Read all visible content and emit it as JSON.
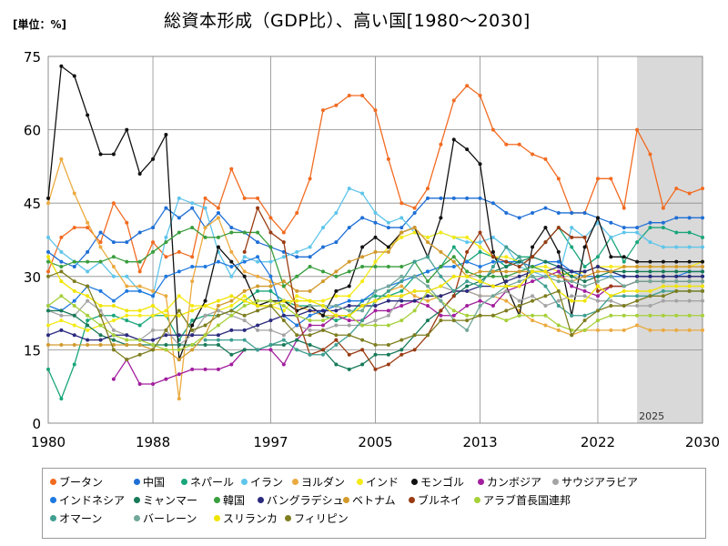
{
  "chart_data": {
    "type": "line",
    "title": "総資本形成（GDP比）、高い国[1980～2030]",
    "unit_label": "[単位：%]",
    "xlabel": "",
    "ylabel": "",
    "x_ticks": [
      1980,
      1988,
      1997,
      2005,
      2013,
      2022,
      2030
    ],
    "y_ticks": [
      0,
      15,
      30,
      45,
      60,
      75
    ],
    "xlim": [
      1980,
      2030
    ],
    "ylim": [
      0,
      75
    ],
    "forecast_start": 2025,
    "forecast_label": "2025",
    "grid": true,
    "legend_position": "bottom",
    "x": [
      1980,
      1981,
      1982,
      1983,
      1984,
      1985,
      1986,
      1987,
      1988,
      1989,
      1990,
      1991,
      1992,
      1993,
      1994,
      1995,
      1996,
      1997,
      1998,
      1999,
      2000,
      2001,
      2002,
      2003,
      2004,
      2005,
      2006,
      2007,
      2008,
      2009,
      2010,
      2011,
      2012,
      2013,
      2014,
      2015,
      2016,
      2017,
      2018,
      2019,
      2020,
      2021,
      2022,
      2023,
      2024,
      2025,
      2026,
      2027,
      2028,
      2029,
      2030
    ],
    "series": [
      {
        "name": "ブータン",
        "color": "#f26b21",
        "values": [
          31,
          38,
          40,
          40,
          37,
          45,
          41,
          31,
          37,
          34,
          35,
          34,
          46,
          44,
          52,
          46,
          46,
          42,
          39,
          43,
          50,
          64,
          65,
          67,
          67,
          64,
          54,
          45,
          44,
          48,
          57,
          66,
          69,
          67,
          60,
          57,
          57,
          55,
          54,
          50,
          43,
          43,
          50,
          50,
          44,
          60,
          55,
          44,
          48,
          47,
          48
        ]
      },
      {
        "name": "中国",
        "color": "#1f6fd6",
        "values": [
          35,
          33,
          32,
          35,
          39,
          37,
          37,
          39,
          40,
          44,
          42,
          44,
          40,
          43,
          40,
          39,
          37,
          36,
          35,
          34,
          34,
          36,
          37,
          40,
          42,
          41,
          40,
          40,
          43,
          46,
          46,
          46,
          46,
          46,
          45,
          43,
          42,
          43,
          44,
          43,
          43,
          43,
          42,
          41,
          40,
          40,
          41,
          41,
          42,
          42,
          42
        ]
      },
      {
        "name": "ネパール",
        "color": "#1aa67b",
        "values": [
          11,
          5,
          12,
          21,
          22,
          22,
          21,
          20,
          22,
          22,
          17,
          21,
          22,
          22,
          23,
          25,
          27,
          27,
          25,
          24,
          24,
          22,
          21,
          22,
          25,
          26,
          26,
          27,
          30,
          31,
          32,
          36,
          33,
          35,
          34,
          32,
          34,
          34,
          37,
          40,
          36,
          32,
          34,
          38,
          33,
          37,
          40,
          40,
          39,
          39,
          38
        ]
      },
      {
        "name": "イラン",
        "color": "#5fc5ea",
        "values": [
          38,
          35,
          33,
          31,
          33,
          30,
          30,
          27,
          26,
          38,
          46,
          45,
          44,
          35,
          30,
          34,
          33,
          33,
          34,
          35,
          36,
          40,
          43,
          48,
          47,
          43,
          41,
          42,
          39,
          38,
          39,
          38,
          37,
          37,
          38,
          36,
          32,
          31,
          30,
          30,
          40,
          38,
          41,
          38,
          39,
          39,
          37,
          36,
          36,
          36,
          36
        ]
      },
      {
        "name": "ヨルダン",
        "color": "#ebaa3f",
        "values": [
          45,
          54,
          47,
          41,
          36,
          32,
          28,
          28,
          27,
          26,
          5,
          29,
          40,
          42,
          35,
          31,
          30,
          29,
          28,
          24,
          23,
          22,
          22,
          22,
          24,
          25,
          27,
          28,
          26,
          25,
          26,
          27,
          27,
          26,
          26,
          25,
          23,
          21,
          20,
          19,
          18,
          19,
          19,
          19,
          19,
          20,
          19,
          19,
          19,
          19,
          19
        ]
      },
      {
        "name": "インド",
        "color": "#f5ea18",
        "values": [
          20,
          21,
          20,
          19,
          20,
          21,
          22,
          22,
          22,
          23,
          26,
          24,
          24,
          23,
          24,
          26,
          24,
          24,
          23,
          26,
          25,
          25,
          26,
          26,
          29,
          33,
          36,
          38,
          39,
          38,
          39,
          38,
          38,
          36,
          34,
          34,
          33,
          32,
          32,
          31,
          30,
          31,
          32,
          32,
          32,
          32,
          32,
          32,
          32,
          32,
          33
        ]
      },
      {
        "name": "モンゴル",
        "color": "#111111",
        "values": [
          46,
          73,
          71,
          63,
          55,
          55,
          60,
          51,
          54,
          59,
          13,
          20,
          25,
          36,
          33,
          30,
          24,
          25,
          25,
          23,
          24,
          22,
          27,
          28,
          36,
          38,
          36,
          39,
          40,
          34,
          42,
          58,
          56,
          53,
          35,
          28,
          22,
          36,
          40,
          35,
          22,
          36,
          42,
          34,
          34,
          33,
          33,
          33,
          33,
          33,
          33
        ]
      },
      {
        "name": "カンボジア",
        "color": "#a21f9e",
        "values": [
          null,
          null,
          null,
          null,
          null,
          9,
          13,
          8,
          8,
          9,
          10,
          11,
          11,
          11,
          12,
          15,
          15,
          15,
          12,
          17,
          20,
          20,
          22,
          21,
          21,
          23,
          23,
          24,
          25,
          24,
          22,
          22,
          24,
          25,
          24,
          27,
          28,
          29,
          30,
          31,
          28,
          27,
          26,
          28,
          28,
          29,
          29,
          29,
          29,
          29,
          29
        ]
      },
      {
        "name": "サウジアラビア",
        "color": "#a4a4a4",
        "values": [
          23,
          22,
          22,
          25,
          23,
          19,
          18,
          17,
          19,
          19,
          16,
          18,
          22,
          23,
          22,
          21,
          19,
          19,
          18,
          20,
          19,
          19,
          20,
          20,
          20,
          21,
          22,
          26,
          27,
          27,
          28,
          27,
          27,
          26,
          26,
          27,
          25,
          26,
          24,
          25,
          26,
          26,
          25,
          25,
          24,
          24,
          24,
          25,
          25,
          25,
          25
        ]
      },
      {
        "name": "インドネシア",
        "color": "#1e78e0",
        "values": [
          24,
          23,
          25,
          28,
          27,
          25,
          27,
          27,
          26,
          30,
          31,
          32,
          32,
          33,
          32,
          33,
          34,
          30,
          22,
          20,
          22,
          23,
          24,
          25,
          25,
          27,
          28,
          29,
          30,
          31,
          32,
          32,
          33,
          32,
          33,
          33,
          33,
          32,
          33,
          33,
          31,
          30,
          30,
          30,
          30,
          30,
          30,
          30,
          30,
          31,
          31
        ]
      },
      {
        "name": "ミャンマー",
        "color": "#187a59",
        "values": [
          23,
          23,
          22,
          20,
          18,
          17,
          16,
          16,
          16,
          16,
          16,
          16,
          16,
          16,
          14,
          15,
          15,
          16,
          16,
          17,
          16,
          15,
          12,
          11,
          12,
          14,
          14,
          15,
          18,
          21,
          23,
          26,
          28,
          29,
          31,
          32,
          33,
          34,
          33,
          32,
          30,
          29,
          30,
          31,
          31,
          31,
          31,
          31,
          31,
          31,
          31
        ]
      },
      {
        "name": "韓国",
        "color": "#3a9e3e",
        "values": [
          33,
          32,
          33,
          33,
          33,
          34,
          33,
          33,
          35,
          37,
          39,
          40,
          38,
          38,
          39,
          39,
          39,
          36,
          28,
          30,
          32,
          31,
          30,
          31,
          32,
          32,
          32,
          32,
          33,
          29,
          32,
          34,
          31,
          30,
          30,
          30,
          31,
          32,
          31,
          30,
          31,
          31,
          32,
          31,
          30,
          30,
          30,
          30,
          30,
          30,
          30
        ]
      },
      {
        "name": "バングラデシュ",
        "color": "#2a2a7e",
        "values": [
          18,
          19,
          18,
          17,
          17,
          18,
          18,
          17,
          17,
          18,
          18,
          18,
          18,
          18,
          19,
          19,
          20,
          21,
          22,
          22,
          23,
          23,
          23,
          24,
          24,
          24,
          25,
          25,
          25,
          26,
          26,
          27,
          27,
          28,
          28,
          29,
          30,
          31,
          31,
          32,
          31,
          31,
          32,
          31,
          30,
          30,
          30,
          30,
          30,
          30,
          30
        ]
      },
      {
        "name": "ベトナム",
        "color": "#d39a2c",
        "values": [
          16,
          16,
          16,
          16,
          16,
          16,
          16,
          16,
          15,
          15,
          13,
          15,
          18,
          24,
          25,
          27,
          28,
          28,
          29,
          27,
          27,
          29,
          31,
          33,
          34,
          35,
          35,
          39,
          40,
          37,
          35,
          33,
          30,
          31,
          31,
          31,
          31,
          31,
          31,
          30,
          29,
          30,
          31,
          31,
          32,
          32,
          32,
          32,
          32,
          32,
          32
        ]
      },
      {
        "name": "ブルネイ",
        "color": "#9a3b12",
        "values": [
          null,
          null,
          null,
          null,
          null,
          null,
          null,
          null,
          null,
          null,
          null,
          null,
          null,
          null,
          null,
          35,
          44,
          39,
          37,
          22,
          14,
          15,
          17,
          14,
          15,
          11,
          12,
          14,
          15,
          18,
          23,
          26,
          35,
          39,
          34,
          33,
          32,
          34,
          37,
          40,
          38,
          38,
          27,
          28,
          28,
          29,
          29,
          29,
          29,
          29,
          29
        ]
      },
      {
        "name": "アラブ首長国連邦",
        "color": "#a6d03a",
        "values": [
          24,
          26,
          24,
          22,
          20,
          18,
          17,
          17,
          16,
          15,
          15,
          16,
          18,
          20,
          22,
          24,
          25,
          25,
          24,
          22,
          21,
          21,
          22,
          22,
          20,
          20,
          20,
          21,
          23,
          27,
          25,
          23,
          22,
          22,
          22,
          21,
          22,
          22,
          22,
          20,
          19,
          19,
          21,
          22,
          22,
          22,
          22,
          22,
          22,
          22,
          22
        ]
      },
      {
        "name": "オマーン",
        "color": "#3f9f91",
        "values": [
          null,
          null,
          null,
          null,
          null,
          null,
          null,
          null,
          null,
          null,
          null,
          null,
          17,
          17,
          17,
          17,
          15,
          16,
          17,
          15,
          14,
          14,
          16,
          18,
          21,
          25,
          27,
          29,
          33,
          34,
          30,
          27,
          29,
          28,
          32,
          36,
          34,
          30,
          28,
          24,
          22,
          22,
          23,
          26,
          26,
          26,
          26,
          27,
          27,
          27,
          27
        ]
      },
      {
        "name": "バーレーン",
        "color": "#72a899",
        "values": [
          null,
          null,
          null,
          null,
          null,
          null,
          null,
          null,
          null,
          null,
          null,
          null,
          null,
          null,
          null,
          null,
          null,
          null,
          null,
          null,
          24,
          24,
          24,
          23,
          23,
          27,
          28,
          30,
          30,
          28,
          25,
          21,
          19,
          24,
          26,
          28,
          29,
          30,
          30,
          29,
          29,
          28,
          29,
          30,
          28,
          29,
          29,
          29,
          29,
          29,
          29
        ]
      },
      {
        "name": "スリランカ",
        "color": "#f0e400",
        "values": [
          34,
          29,
          27,
          26,
          24,
          24,
          23,
          23,
          24,
          22,
          22,
          23,
          24,
          25,
          26,
          25,
          24,
          24,
          25,
          25,
          25,
          24,
          22,
          22,
          24,
          25,
          26,
          26,
          27,
          27,
          28,
          30,
          30,
          29,
          28,
          28,
          28,
          31,
          31,
          27,
          25,
          25,
          28,
          26,
          27,
          27,
          27,
          28,
          28,
          28,
          28
        ]
      },
      {
        "name": "フィリピン",
        "color": "#7e7e20",
        "values": [
          30,
          31,
          29,
          28,
          22,
          15,
          13,
          14,
          15,
          19,
          23,
          19,
          20,
          22,
          23,
          22,
          23,
          24,
          21,
          18,
          18,
          19,
          18,
          18,
          17,
          16,
          16,
          17,
          18,
          18,
          21,
          21,
          21,
          22,
          22,
          23,
          24,
          25,
          26,
          27,
          18,
          21,
          23,
          24,
          24,
          25,
          26,
          26,
          27,
          27,
          27
        ]
      }
    ]
  }
}
